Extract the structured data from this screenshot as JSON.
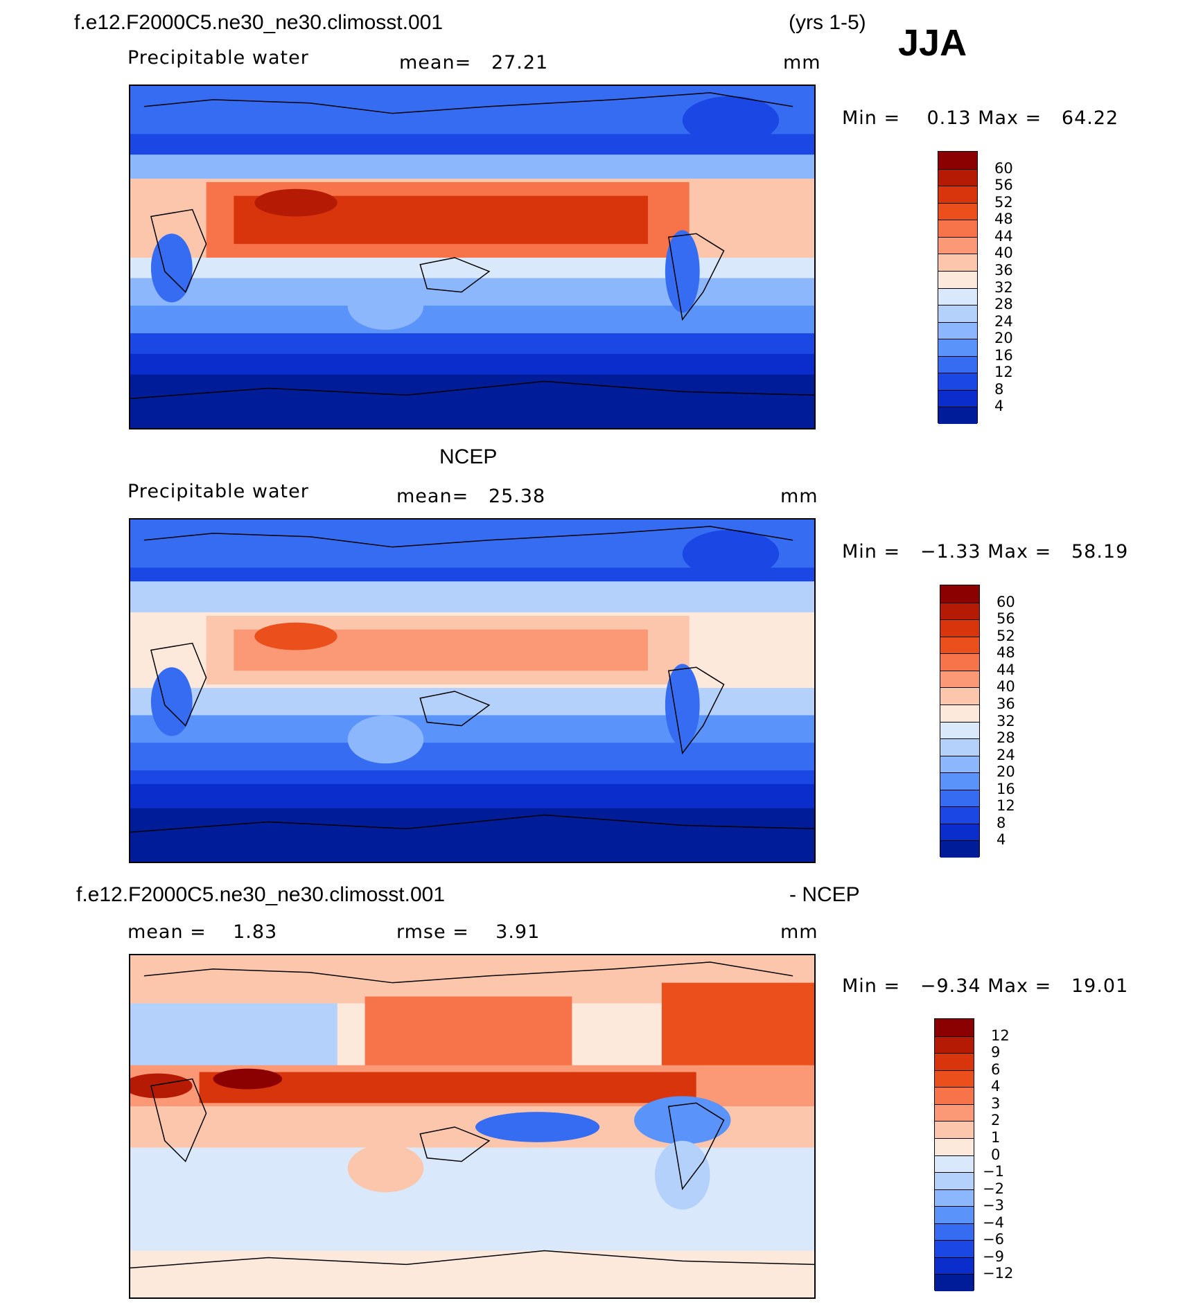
{
  "header": {
    "case_name": "f.e12.F2000C5.ne30_ne30.climosst.001",
    "years": "(yrs 1-5)",
    "season": "JJA"
  },
  "panels": [
    {
      "title": "",
      "left_label": "Precipitable water",
      "center_label": "mean=   27.21",
      "units": "mm",
      "minmax": "Min =    0.13 Max =   64.22",
      "colorbar": {
        "levels": [
          "60",
          "56",
          "52",
          "48",
          "44",
          "40",
          "36",
          "32",
          "28",
          "24",
          "20",
          "16",
          "12",
          "8",
          "4"
        ],
        "colors": [
          "#8b0000",
          "#b51a05",
          "#d8350c",
          "#ea4f1c",
          "#f7744a",
          "#fb9977",
          "#fcc6ad",
          "#fde9dc",
          "#d9e9fb",
          "#b4d1fb",
          "#8db7fc",
          "#5a93fa",
          "#356cf2",
          "#1b48e5",
          "#0a2dcc",
          "#001c99"
        ]
      }
    },
    {
      "title": "NCEP",
      "left_label": "Precipitable water",
      "center_label": "mean=   25.38",
      "units": "mm",
      "minmax": "Min =   −1.33 Max =   58.19",
      "colorbar": {
        "levels": [
          "60",
          "56",
          "52",
          "48",
          "44",
          "40",
          "36",
          "32",
          "28",
          "24",
          "20",
          "16",
          "12",
          "8",
          "4"
        ],
        "colors": [
          "#8b0000",
          "#b51a05",
          "#d8350c",
          "#ea4f1c",
          "#f7744a",
          "#fb9977",
          "#fcc6ad",
          "#fde9dc",
          "#d9e9fb",
          "#b4d1fb",
          "#8db7fc",
          "#5a93fa",
          "#356cf2",
          "#1b48e5",
          "#0a2dcc",
          "#001c99"
        ]
      }
    },
    {
      "title": "f.e12.F2000C5.ne30_ne30.climosst.001",
      "title_suffix": "- NCEP",
      "left_label": "mean =    1.83",
      "center_label": "rmse =    3.91",
      "units": "mm",
      "minmax": "Min =   −9.34 Max =   19.01",
      "colorbar": {
        "levels": [
          "12",
          "9",
          "6",
          "4",
          "3",
          "2",
          "1",
          "0",
          "−1",
          "−2",
          "−3",
          "−4",
          "−6",
          "−9",
          "−12"
        ],
        "colors": [
          "#8b0000",
          "#b51a05",
          "#d8350c",
          "#ea4f1c",
          "#f7744a",
          "#fb9977",
          "#fcc6ad",
          "#fde9dc",
          "#d9e9fb",
          "#b4d1fb",
          "#8db7fc",
          "#5a93fa",
          "#356cf2",
          "#1b48e5",
          "#0a2dcc",
          "#001c99"
        ]
      }
    }
  ]
}
